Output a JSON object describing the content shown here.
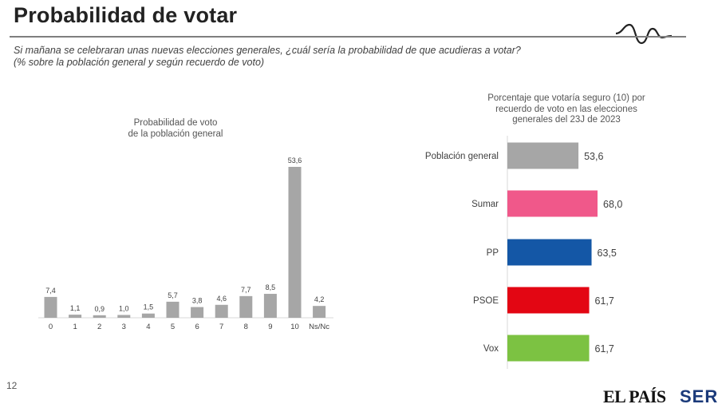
{
  "header": {
    "title": "Probabilidad de votar",
    "subtitle_line1": "Si mañana se celebraran unas nuevas elecciones generales, ¿cuál sería la probabilidad de que acudieras a votar?",
    "subtitle_line2": "(% sobre la población general y según recuerdo de voto)"
  },
  "footer": {
    "page_number": "12",
    "logo_elpais": "EL PAÍS",
    "logo_ser": "SER"
  },
  "colors": {
    "gray_bar": "#a6a6a6",
    "sumar": "#f0588a",
    "pp": "#1457a6",
    "psoe": "#e30613",
    "vox": "#7cc242"
  },
  "chart_data": [
    {
      "type": "bar",
      "title_line1": "Probabilidad de voto",
      "title_line2": "de la población general",
      "categories": [
        "0",
        "1",
        "2",
        "3",
        "4",
        "5",
        "6",
        "7",
        "8",
        "9",
        "10",
        "Ns/Nc"
      ],
      "values": [
        7.4,
        1.1,
        0.9,
        1.0,
        1.5,
        5.7,
        3.8,
        4.6,
        7.7,
        8.5,
        53.6,
        4.2
      ],
      "value_labels": [
        "7,4",
        "1,1",
        "0,9",
        "1,0",
        "1,5",
        "5,7",
        "3,8",
        "4,6",
        "7,7",
        "8,5",
        "53,6",
        "4,2"
      ],
      "orientation": "vertical",
      "grid": false,
      "ylim": [
        0,
        53.6
      ]
    },
    {
      "type": "bar",
      "title_line1": "Porcentaje que votaría seguro (10) por",
      "title_line2": "recuerdo de voto en las elecciones",
      "title_line3": "generales del 23J de 2023",
      "categories": [
        "Población general",
        "Sumar",
        "PP",
        "PSOE",
        "Vox"
      ],
      "values": [
        53.6,
        68.0,
        63.5,
        61.7,
        61.7
      ],
      "value_labels": [
        "53,6",
        "68,0",
        "63,5",
        "61,7",
        "61,7"
      ],
      "colors": [
        "#a6a6a6",
        "#f0588a",
        "#1457a6",
        "#e30613",
        "#7cc242"
      ],
      "orientation": "horizontal",
      "grid": false,
      "xlim": [
        0,
        68.0
      ]
    }
  ]
}
